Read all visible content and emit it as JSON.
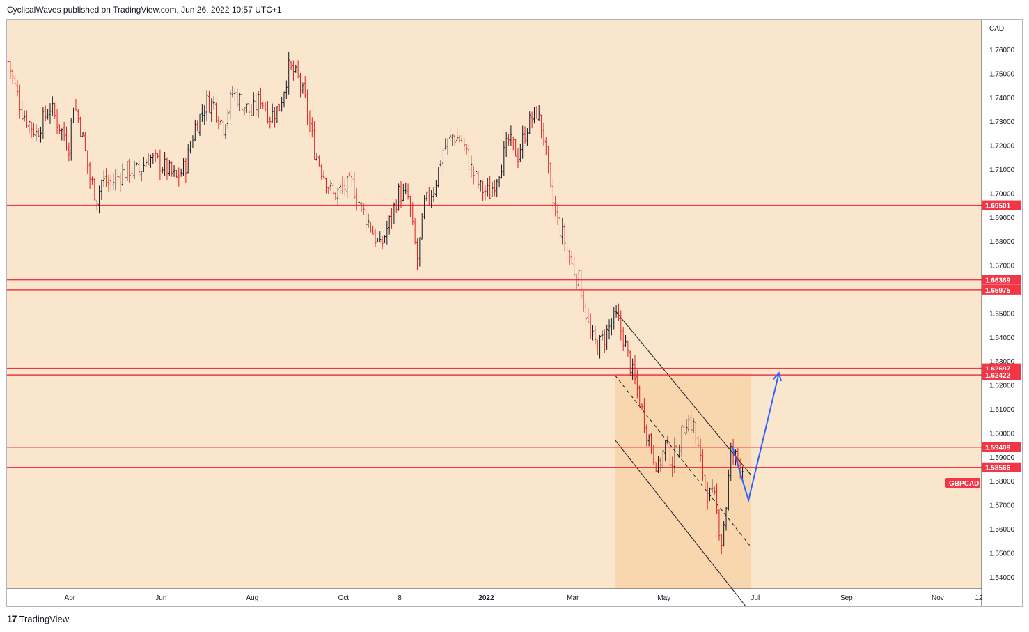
{
  "header": {
    "text": "CyclicalWaves published on TradingView.com, Jun 26, 2022 10:57 UTC+1"
  },
  "footer": {
    "brand": "TradingView"
  },
  "colors": {
    "background": "#fae5cd",
    "level_line": "#f23645",
    "channel_fill": "#f8d3a8",
    "projection": "#2962ff",
    "bar_up": "#131722",
    "bar_down": "#e01e1e"
  },
  "chart_data": {
    "type": "ohlc-bar",
    "symbol": "GBPCAD",
    "currency": "CAD",
    "ylim": [
      1.535,
      1.7725
    ],
    "y_ticks": [
      1.54,
      1.55,
      1.56,
      1.57,
      1.58,
      1.59,
      1.6,
      1.61,
      1.62,
      1.63,
      1.64,
      1.65,
      1.66,
      1.67,
      1.68,
      1.69,
      1.7,
      1.71,
      1.72,
      1.73,
      1.74,
      1.75,
      1.76
    ],
    "y_tick_labels": [
      "1.54000",
      "1.55000",
      "1.56000",
      "1.57000",
      "1.58000",
      "1.59000",
      "1.60000",
      "1.61000",
      "1.62000",
      "1.63000",
      "1.64000",
      "1.65000",
      "1.66000",
      "1.67000",
      "1.68000",
      "1.69000",
      "1.70000",
      "1.71000",
      "1.72000",
      "1.73000",
      "1.74000",
      "1.75000",
      "1.76000"
    ],
    "x_labels": [
      "Apr",
      "Jun",
      "Aug",
      "Oct",
      "8",
      "2022",
      "Mar",
      "May",
      "Jul",
      "Sep",
      "Nov",
      "12"
    ],
    "x_label_index": [
      12,
      51,
      90,
      129,
      153,
      190,
      227,
      266,
      305,
      344,
      383,
      414
    ],
    "horizontal_levels": [
      {
        "value": 1.69501,
        "label": "1.69501"
      },
      {
        "value": 1.66389,
        "label": "1.66389"
      },
      {
        "value": 1.65975,
        "label": "1.65975"
      },
      {
        "value": 1.62697,
        "label": "1.62697"
      },
      {
        "value": 1.62422,
        "label": "1.62422"
      },
      {
        "value": 1.59409,
        "label": "1.59409"
      },
      {
        "value": 1.58566,
        "label": "1.58566"
      }
    ],
    "current_price_tag": "GBPCAD",
    "close_path": [
      [
        0,
        1.755
      ],
      [
        6,
        1.734
      ],
      [
        12,
        1.725
      ],
      [
        18,
        1.736
      ],
      [
        22,
        1.728
      ],
      [
        26,
        1.72
      ],
      [
        28,
        1.738
      ],
      [
        31,
        1.728
      ],
      [
        35,
        1.706
      ],
      [
        38,
        1.698
      ],
      [
        40,
        1.705
      ],
      [
        44,
        1.704
      ],
      [
        48,
        1.708
      ],
      [
        52,
        1.71
      ],
      [
        56,
        1.709
      ],
      [
        60,
        1.715
      ],
      [
        64,
        1.713
      ],
      [
        68,
        1.71
      ],
      [
        72,
        1.706
      ],
      [
        76,
        1.712
      ],
      [
        80,
        1.728
      ],
      [
        85,
        1.738
      ],
      [
        88,
        1.737
      ],
      [
        92,
        1.728
      ],
      [
        96,
        1.742
      ],
      [
        100,
        1.738
      ],
      [
        104,
        1.733
      ],
      [
        108,
        1.74
      ],
      [
        112,
        1.732
      ],
      [
        116,
        1.736
      ],
      [
        120,
        1.752
      ],
      [
        124,
        1.748
      ],
      [
        127,
        1.738
      ],
      [
        131,
        1.718
      ],
      [
        135,
        1.708
      ],
      [
        139,
        1.699
      ],
      [
        143,
        1.702
      ],
      [
        147,
        1.704
      ],
      [
        151,
        1.694
      ],
      [
        155,
        1.686
      ],
      [
        159,
        1.677
      ],
      [
        163,
        1.688
      ],
      [
        167,
        1.7
      ],
      [
        171,
        1.698
      ],
      [
        175,
        1.672
      ],
      [
        178,
        1.695
      ],
      [
        182,
        1.702
      ],
      [
        186,
        1.718
      ],
      [
        190,
        1.724
      ],
      [
        194,
        1.722
      ],
      [
        198,
        1.71
      ],
      [
        202,
        1.702
      ],
      [
        206,
        1.7
      ],
      [
        210,
        1.71
      ],
      [
        214,
        1.722
      ],
      [
        218,
        1.716
      ],
      [
        222,
        1.728
      ],
      [
        226,
        1.734
      ],
      [
        229,
        1.724
      ],
      [
        232,
        1.7
      ],
      [
        235,
        1.688
      ],
      [
        238,
        1.68
      ],
      [
        241,
        1.67
      ],
      [
        244,
        1.664
      ],
      [
        246,
        1.655
      ],
      [
        249,
        1.64
      ],
      [
        252,
        1.636
      ],
      [
        255,
        1.64
      ],
      [
        258,
        1.646
      ],
      [
        260,
        1.648
      ],
      [
        263,
        1.64
      ],
      [
        266,
        1.628
      ],
      [
        269,
        1.618
      ],
      [
        272,
        1.605
      ],
      [
        275,
        1.594
      ],
      [
        278,
        1.585
      ],
      [
        281,
        1.595
      ],
      [
        284,
        1.588
      ],
      [
        287,
        1.596
      ],
      [
        290,
        1.606
      ],
      [
        293,
        1.603
      ],
      [
        296,
        1.588
      ],
      [
        299,
        1.575
      ],
      [
        302,
        1.572
      ],
      [
        305,
        1.555
      ],
      [
        307,
        1.57
      ],
      [
        309,
        1.592
      ],
      [
        312,
        1.589
      ],
      [
        314,
        1.585
      ]
    ],
    "channel": {
      "upper": [
        [
          260,
          1.651
        ],
        [
          318,
          1.5825
        ]
      ],
      "middle": [
        [
          260,
          1.624
        ],
        [
          318,
          1.5525
        ]
      ],
      "lower": [
        [
          260,
          1.597
        ],
        [
          318,
          1.525
        ]
      ],
      "fill_x": [
        260,
        318
      ],
      "fill_y": [
        1.535,
        1.625
      ]
    },
    "projection": [
      [
        310,
        1.5945
      ],
      [
        317,
        1.572
      ],
      [
        330,
        1.625
      ]
    ]
  }
}
